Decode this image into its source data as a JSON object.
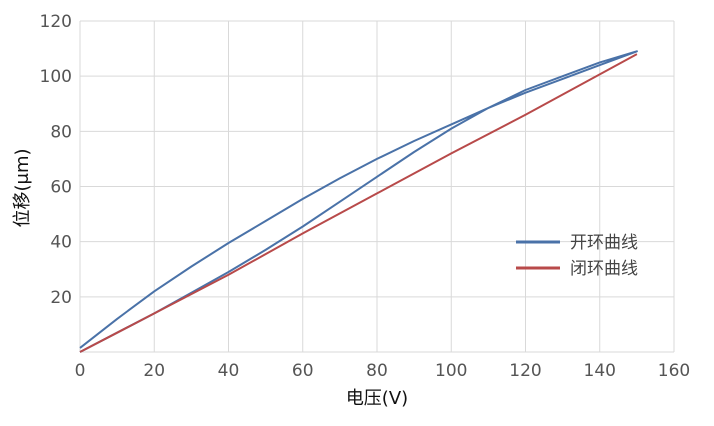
{
  "chart_data": {
    "type": "line",
    "xlabel": "电压(V)",
    "ylabel": "位移(μm)",
    "xlim": [
      0,
      160
    ],
    "ylim": [
      0,
      120
    ],
    "xticks": [
      "0",
      "20",
      "40",
      "60",
      "80",
      "100",
      "120",
      "140",
      "160"
    ],
    "yticks": [
      "20",
      "40",
      "60",
      "80",
      "100",
      "120"
    ],
    "grid": true,
    "legend_position": "right",
    "series": [
      {
        "name": "开环曲线",
        "color": "#4a72a8",
        "x": [
          0,
          10,
          20,
          30,
          40,
          50,
          60,
          70,
          80,
          90,
          100,
          110,
          120,
          130,
          140,
          150,
          140,
          130,
          120,
          110,
          100,
          90,
          80,
          70,
          60,
          50,
          40,
          30,
          20,
          10,
          0
        ],
        "y": [
          1.5,
          12,
          22,
          31,
          39.5,
          47.5,
          55.5,
          63,
          70,
          76.5,
          82.5,
          88.5,
          94,
          99,
          104,
          109,
          105,
          100,
          95,
          88.5,
          81,
          72.5,
          63.5,
          54.5,
          45.5,
          37,
          29,
          21.5,
          14,
          7,
          0
        ]
      },
      {
        "name": "闭环曲线",
        "color": "#b84a4a",
        "x": [
          0,
          20,
          40,
          60,
          80,
          100,
          120,
          150
        ],
        "y": [
          0,
          14,
          28,
          43,
          57.5,
          72,
          86,
          108
        ]
      }
    ]
  }
}
